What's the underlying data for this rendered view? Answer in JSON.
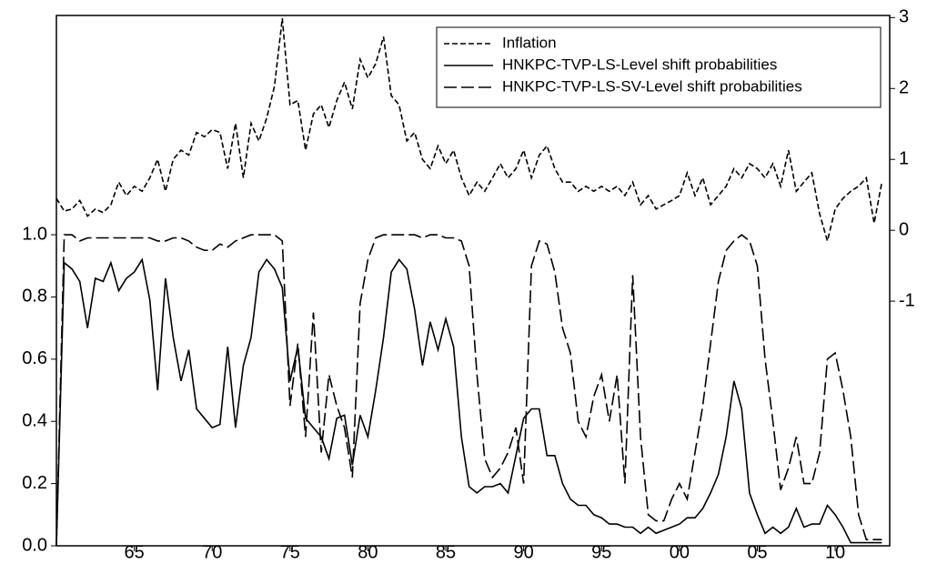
{
  "chart_data": {
    "type": "line",
    "x": [
      1960,
      1960.5,
      1961,
      1961.5,
      1962,
      1962.5,
      1963,
      1963.5,
      1964,
      1964.5,
      1965,
      1965.5,
      1966,
      1966.5,
      1967,
      1967.5,
      1968,
      1968.5,
      1969,
      1969.5,
      1970,
      1970.5,
      1971,
      1971.5,
      1972,
      1972.5,
      1973,
      1973.5,
      1974,
      1974.5,
      1975,
      1975.5,
      1976,
      1976.5,
      1977,
      1977.5,
      1978,
      1978.5,
      1979,
      1979.5,
      1980,
      1980.5,
      1981,
      1981.5,
      1982,
      1982.5,
      1983,
      1983.5,
      1984,
      1984.5,
      1985,
      1985.5,
      1986,
      1986.5,
      1987,
      1987.5,
      1988,
      1988.5,
      1989,
      1989.5,
      1990,
      1990.5,
      1991,
      1991.5,
      1992,
      1992.5,
      1993,
      1993.5,
      1994,
      1994.5,
      1995,
      1995.5,
      1996,
      1996.5,
      1997,
      1997.5,
      1998,
      1998.5,
      1999,
      1999.5,
      2000,
      2000.5,
      2001,
      2001.5,
      2002,
      2002.5,
      2003,
      2003.5,
      2004,
      2004.5,
      2005,
      2005.5,
      2006,
      2006.5,
      2007,
      2007.5,
      2008,
      2008.5,
      2009,
      2009.5,
      2010,
      2010.5,
      2011,
      2011.5,
      2012,
      2012.5,
      2013
    ],
    "series": [
      {
        "name": "Inflation",
        "color": "#000000",
        "dash": "short",
        "axis": "y2",
        "values": [
          0.45,
          0.27,
          0.3,
          0.42,
          0.2,
          0.3,
          0.25,
          0.36,
          0.68,
          0.49,
          0.62,
          0.55,
          0.74,
          1.0,
          0.55,
          1.0,
          1.13,
          1.06,
          1.38,
          1.32,
          1.42,
          1.38,
          0.87,
          1.51,
          0.74,
          1.51,
          1.26,
          1.58,
          2.03,
          2.99,
          1.77,
          1.83,
          1.13,
          1.64,
          1.77,
          1.45,
          1.83,
          2.09,
          1.71,
          2.41,
          2.15,
          2.35,
          2.73,
          1.9,
          1.77,
          1.26,
          1.38,
          1.0,
          0.87,
          1.19,
          0.94,
          1.13,
          0.74,
          0.49,
          0.68,
          0.55,
          0.74,
          0.94,
          0.74,
          0.87,
          1.13,
          0.74,
          1.06,
          1.19,
          0.87,
          0.68,
          0.68,
          0.55,
          0.62,
          0.55,
          0.62,
          0.55,
          0.62,
          0.49,
          0.68,
          0.36,
          0.49,
          0.3,
          0.36,
          0.42,
          0.49,
          0.81,
          0.49,
          0.74,
          0.36,
          0.49,
          0.62,
          0.87,
          0.74,
          0.94,
          0.87,
          0.74,
          0.94,
          0.62,
          1.13,
          0.55,
          0.68,
          0.81,
          0.23,
          -0.15,
          0.3,
          0.45,
          0.55,
          0.62,
          0.74,
          0.1,
          0.68
        ]
      },
      {
        "name": "HNKPC-TVP-LS-Level shift probabilities",
        "color": "#000000",
        "dash": "solid",
        "values": [
          0,
          0.91,
          0.89,
          0.85,
          0.7,
          0.86,
          0.85,
          0.91,
          0.82,
          0.86,
          0.88,
          0.92,
          0.79,
          0.5,
          0.86,
          0.67,
          0.53,
          0.63,
          0.44,
          0.41,
          0.38,
          0.39,
          0.64,
          0.38,
          0.58,
          0.67,
          0.88,
          0.92,
          0.89,
          0.83,
          0.53,
          0.64,
          0.41,
          0.38,
          0.35,
          0.28,
          0.41,
          0.42,
          0.26,
          0.42,
          0.35,
          0.5,
          0.67,
          0.88,
          0.92,
          0.89,
          0.76,
          0.58,
          0.72,
          0.63,
          0.73,
          0.64,
          0.35,
          0.19,
          0.17,
          0.19,
          0.19,
          0.2,
          0.17,
          0.29,
          0.41,
          0.44,
          0.44,
          0.29,
          0.29,
          0.2,
          0.15,
          0.13,
          0.13,
          0.1,
          0.09,
          0.07,
          0.07,
          0.06,
          0.06,
          0.04,
          0.06,
          0.04,
          0.05,
          0.06,
          0.07,
          0.09,
          0.09,
          0.12,
          0.17,
          0.23,
          0.35,
          0.53,
          0.44,
          0.17,
          0.1,
          0.04,
          0.06,
          0.04,
          0.06,
          0.12,
          0.06,
          0.07,
          0.07,
          0.13,
          0.1,
          0.06,
          0.01,
          0.01,
          0.01,
          0.01,
          0.01
        ]
      },
      {
        "name": "HNKPC-TVP-LS-SV-Level shift probabilities",
        "color": "#000000",
        "dash": "long",
        "values": [
          0,
          1.0,
          1.0,
          0.98,
          0.99,
          0.99,
          0.99,
          0.99,
          0.99,
          0.99,
          0.99,
          0.99,
          0.99,
          0.98,
          0.98,
          0.99,
          0.99,
          0.98,
          0.96,
          0.95,
          0.95,
          0.97,
          0.96,
          0.98,
          0.99,
          1.0,
          1.0,
          1.0,
          1.0,
          0.98,
          0.45,
          0.65,
          0.35,
          0.75,
          0.3,
          0.55,
          0.45,
          0.38,
          0.22,
          0.78,
          0.92,
          0.99,
          1.0,
          1.0,
          1.0,
          1.0,
          1.0,
          0.99,
          1.0,
          1.0,
          0.99,
          0.99,
          0.98,
          0.9,
          0.55,
          0.28,
          0.22,
          0.25,
          0.3,
          0.38,
          0.2,
          0.9,
          0.98,
          0.97,
          0.88,
          0.7,
          0.62,
          0.4,
          0.35,
          0.48,
          0.55,
          0.4,
          0.55,
          0.2,
          0.87,
          0.35,
          0.1,
          0.08,
          0.08,
          0.15,
          0.2,
          0.15,
          0.3,
          0.45,
          0.65,
          0.85,
          0.95,
          0.98,
          1.0,
          0.98,
          0.9,
          0.6,
          0.4,
          0.18,
          0.25,
          0.35,
          0.2,
          0.2,
          0.3,
          0.6,
          0.62,
          0.5,
          0.35,
          0.1,
          0.02,
          0.02,
          0.02
        ]
      }
    ],
    "xlim": [
      1960,
      2013.5
    ],
    "xticks": [
      {
        "value": 1965,
        "label": "65"
      },
      {
        "value": 1970,
        "label": "70"
      },
      {
        "value": 1975,
        "label": "75"
      },
      {
        "value": 1980,
        "label": "80"
      },
      {
        "value": 1985,
        "label": "85"
      },
      {
        "value": 1990,
        "label": "90"
      },
      {
        "value": 1995,
        "label": "95"
      },
      {
        "value": 2000,
        "label": "00"
      },
      {
        "value": 2005,
        "label": "05"
      },
      {
        "value": 2010,
        "label": "10"
      }
    ],
    "ylim": [
      0,
      1.705
    ],
    "yticks": [
      {
        "value": 0,
        "label": "0.0"
      },
      0.2,
      0.4,
      0.6,
      0.8,
      {
        "value": 1,
        "label": "1.0"
      }
    ],
    "y2lim": [
      -4.45,
      3.03
    ],
    "y2ticks": [
      -1,
      0,
      1,
      2,
      3
    ],
    "grid": false,
    "legend": "upper-right"
  }
}
